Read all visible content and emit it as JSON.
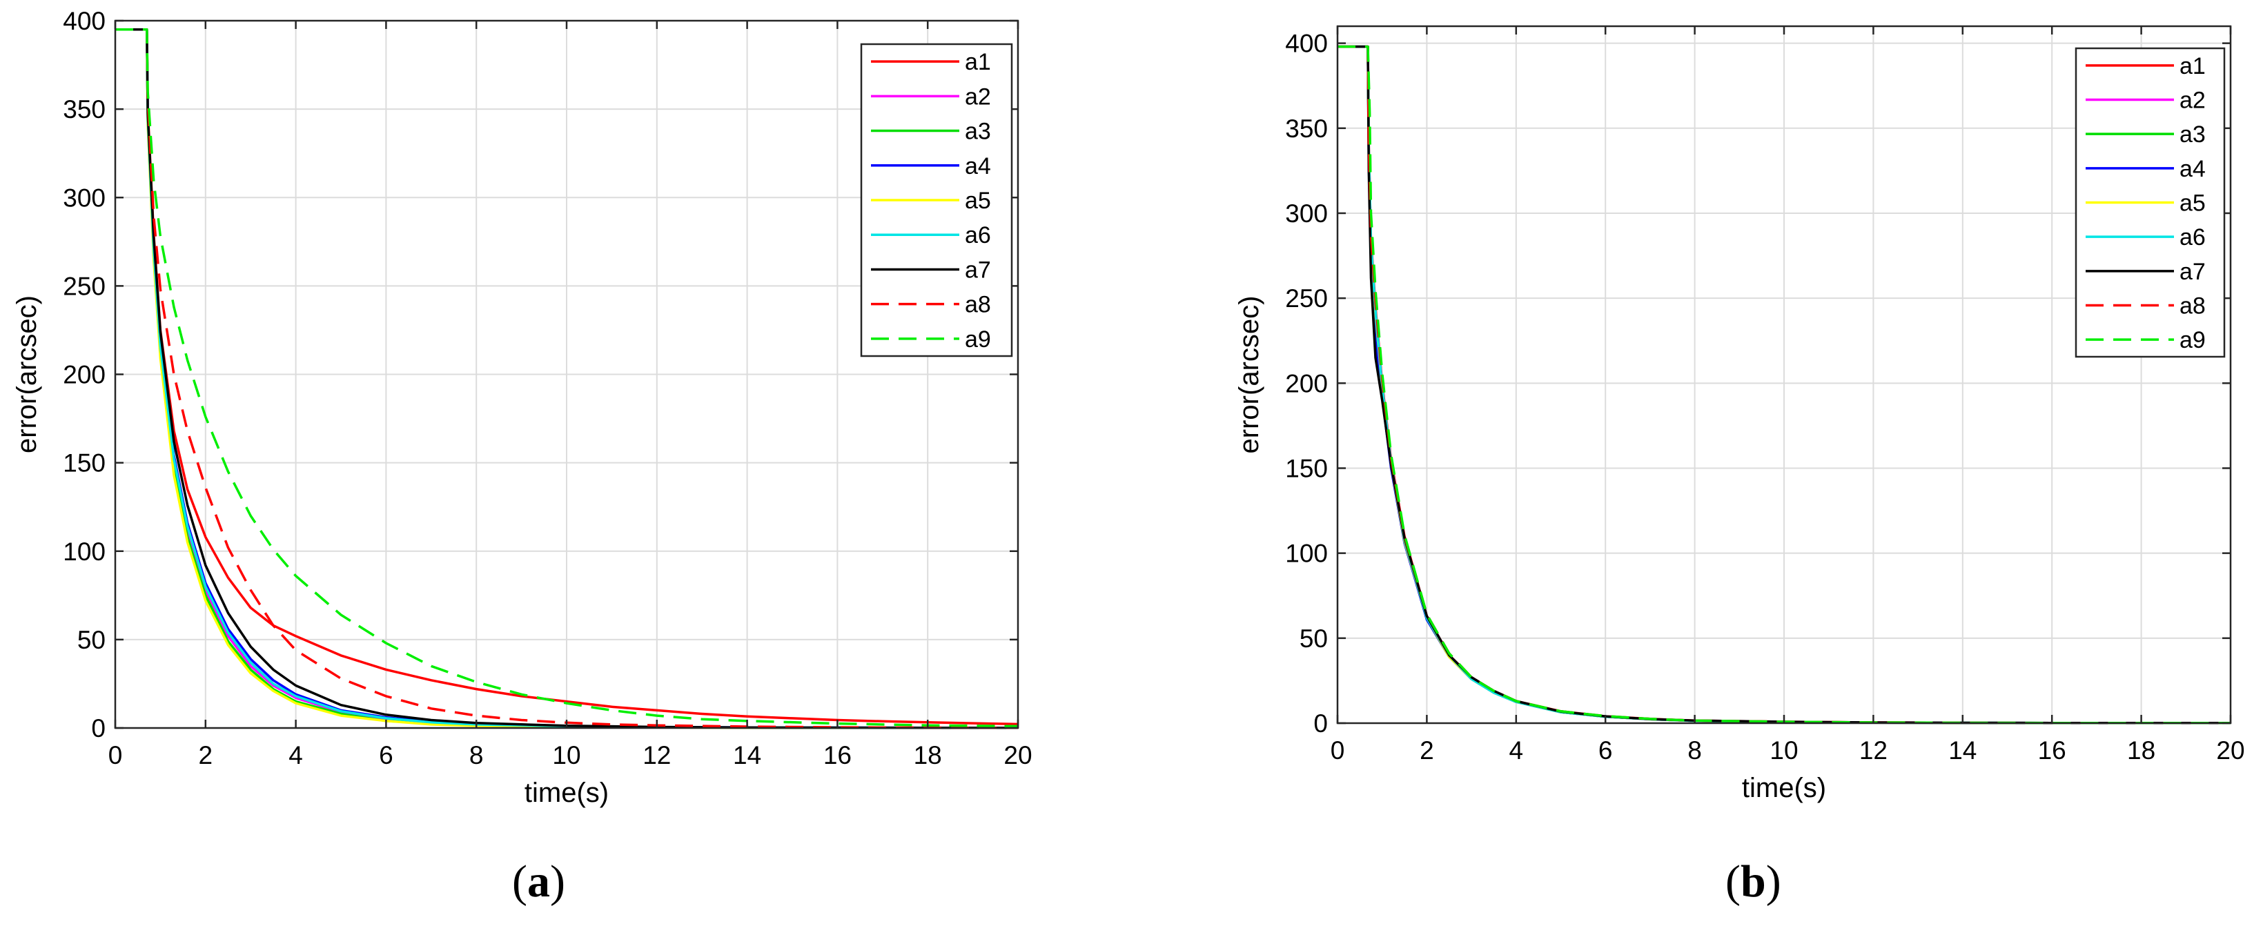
{
  "panel_labels": [
    {
      "open": "(",
      "letter": "a",
      "close": ")"
    },
    {
      "open": "(",
      "letter": "b",
      "close": ")"
    }
  ],
  "chart_data": [
    {
      "type": "line",
      "title": "",
      "xlabel": "time(s)",
      "ylabel": "error(arcsec)",
      "xlim": [
        0,
        20
      ],
      "ylim": [
        0,
        400
      ],
      "xticks": [
        0,
        2,
        4,
        6,
        8,
        10,
        12,
        14,
        16,
        18,
        20
      ],
      "yticks": [
        0,
        50,
        100,
        150,
        200,
        250,
        300,
        350,
        400
      ],
      "grid": true,
      "legend_position": "top-right",
      "series": [
        {
          "name": "a1",
          "color": "#ff0000",
          "dash": "solid",
          "x": [
            0,
            0.7,
            0.72,
            0.85,
            1.0,
            1.3,
            1.6,
            2.0,
            2.5,
            3.0,
            3.5,
            4.0,
            5.0,
            6.0,
            7.0,
            8.0,
            9.0,
            10.0,
            11.0,
            12.0,
            13.0,
            14.0,
            15.0,
            16.0,
            17.0,
            18.0,
            19.0,
            20.0
          ],
          "y": [
            395,
            395,
            350,
            280,
            225,
            168,
            135,
            108,
            85,
            68,
            58,
            52,
            41,
            33,
            27,
            22,
            18,
            15,
            12,
            10,
            8,
            6.5,
            5.5,
            4.5,
            3.8,
            3.2,
            2.7,
            2.2
          ]
        },
        {
          "name": "a2",
          "color": "#ff00ff",
          "dash": "solid",
          "x": [
            0,
            0.7,
            0.72,
            0.85,
            1.0,
            1.3,
            1.6,
            2.0,
            2.5,
            3.0,
            3.5,
            4.0,
            5.0,
            6.0,
            7.0,
            8.0,
            10.0,
            12.0,
            14.0,
            16.0,
            18.0,
            20.0
          ],
          "y": [
            395,
            395,
            345,
            270,
            215,
            150,
            112,
            78,
            52,
            35,
            24,
            17,
            9,
            5,
            3,
            2,
            1,
            0.5,
            0.3,
            0.2,
            0.1,
            0.1
          ]
        },
        {
          "name": "a3",
          "color": "#00dd00",
          "dash": "solid",
          "x": [
            0,
            0.7,
            0.72,
            0.85,
            1.0,
            1.3,
            1.6,
            2.0,
            2.5,
            3.0,
            3.5,
            4.0,
            5.0,
            6.0,
            7.0,
            8.0,
            10.0,
            12.0,
            14.0,
            16.0,
            18.0,
            20.0
          ],
          "y": [
            395,
            395,
            343,
            268,
            212,
            146,
            108,
            75,
            49,
            33,
            22,
            15,
            8,
            4,
            2.5,
            1.5,
            0.8,
            0.4,
            0.2,
            0.1,
            0.1,
            0.1
          ]
        },
        {
          "name": "a4",
          "color": "#0000ff",
          "dash": "solid",
          "x": [
            0,
            0.7,
            0.72,
            0.85,
            1.0,
            1.3,
            1.6,
            2.0,
            2.5,
            3.0,
            3.5,
            4.0,
            5.0,
            6.0,
            7.0,
            8.0,
            10.0,
            12.0,
            14.0,
            16.0,
            18.0,
            20.0
          ],
          "y": [
            395,
            395,
            347,
            273,
            218,
            154,
            116,
            82,
            56,
            39,
            27,
            19,
            10,
            6,
            3.5,
            2,
            1,
            0.5,
            0.3,
            0.2,
            0.1,
            0.1
          ]
        },
        {
          "name": "a5",
          "color": "#ffff00",
          "dash": "solid",
          "x": [
            0,
            0.7,
            0.72,
            0.85,
            1.0,
            1.3,
            1.6,
            2.0,
            2.5,
            3.0,
            3.5,
            4.0,
            5.0,
            6.0,
            7.0,
            8.0,
            10.0,
            12.0,
            14.0,
            16.0,
            18.0,
            20.0
          ],
          "y": [
            395,
            395,
            341,
            265,
            209,
            143,
            105,
            72,
            47,
            31,
            21,
            14,
            7,
            4,
            2,
            1.2,
            0.6,
            0.3,
            0.2,
            0.1,
            0.1,
            0.1
          ]
        },
        {
          "name": "a6",
          "color": "#00e5e5",
          "dash": "solid",
          "x": [
            0,
            0.7,
            0.72,
            0.85,
            1.0,
            1.3,
            1.6,
            2.0,
            2.5,
            3.0,
            3.5,
            4.0,
            5.0,
            6.0,
            7.0,
            8.0,
            10.0,
            12.0,
            14.0,
            16.0,
            18.0,
            20.0
          ],
          "y": [
            395,
            395,
            345,
            271,
            216,
            152,
            114,
            80,
            54,
            37,
            25,
            18,
            9.5,
            5.5,
            3.2,
            2,
            1,
            0.5,
            0.3,
            0.2,
            0.1,
            0.1
          ]
        },
        {
          "name": "a7",
          "color": "#000000",
          "dash": "solid",
          "x": [
            0,
            0.7,
            0.72,
            0.85,
            1.0,
            1.3,
            1.6,
            2.0,
            2.5,
            3.0,
            3.5,
            4.0,
            5.0,
            6.0,
            7.0,
            8.0,
            10.0,
            12.0,
            14.0,
            16.0,
            18.0,
            20.0
          ],
          "y": [
            395,
            395,
            348,
            278,
            224,
            162,
            126,
            92,
            65,
            46,
            33,
            24,
            13,
            7.5,
            4.5,
            2.8,
            1.3,
            0.6,
            0.3,
            0.2,
            0.1,
            0.1
          ]
        },
        {
          "name": "a8",
          "color": "#ff0000",
          "dash": "dashed",
          "x": [
            0,
            0.7,
            0.72,
            0.85,
            1.0,
            1.3,
            1.6,
            2.0,
            2.5,
            3.0,
            3.5,
            4.0,
            5.0,
            6.0,
            7.0,
            8.0,
            9.0,
            10.0,
            11.0,
            12.0,
            14.0,
            16.0,
            18.0,
            20.0
          ],
          "y": [
            395,
            395,
            355,
            290,
            248,
            200,
            168,
            136,
            102,
            78,
            58,
            44,
            28,
            18,
            11,
            7,
            4.5,
            3,
            2,
            1.5,
            0.8,
            0.4,
            0.2,
            0.1
          ]
        },
        {
          "name": "a9",
          "color": "#00ee00",
          "dash": "dashed",
          "x": [
            0,
            0.7,
            0.72,
            0.85,
            1.0,
            1.3,
            1.6,
            2.0,
            2.5,
            3.0,
            3.5,
            4.0,
            5.0,
            6.0,
            7.0,
            8.0,
            9.0,
            10.0,
            11.0,
            12.0,
            13.0,
            14.0,
            16.0,
            18.0,
            20.0
          ],
          "y": [
            395,
            395,
            360,
            310,
            278,
            238,
            208,
            176,
            145,
            120,
            101,
            86,
            64,
            48,
            35,
            26,
            19,
            14,
            10,
            7,
            5,
            4,
            2.5,
            1.5,
            1
          ]
        }
      ]
    },
    {
      "type": "line",
      "title": "",
      "xlabel": "time(s)",
      "ylabel": "error(arcsec)",
      "xlim": [
        0,
        20
      ],
      "ylim": [
        0,
        410
      ],
      "xticks": [
        0,
        2,
        4,
        6,
        8,
        10,
        12,
        14,
        16,
        18,
        20
      ],
      "yticks": [
        0,
        50,
        100,
        150,
        200,
        250,
        300,
        350,
        400
      ],
      "grid": true,
      "legend_position": "top-right",
      "series": [
        {
          "name": "a1",
          "color": "#ff0000",
          "dash": "solid",
          "x": [
            0,
            0.68,
            0.7,
            0.75,
            0.85,
            1.0,
            1.2,
            1.5,
            2.0,
            2.5,
            3.0,
            3.5,
            4.0,
            5.0,
            6.0,
            7.0,
            8.0,
            10.0,
            12.0,
            14.0,
            16.0,
            18.0,
            20.0
          ],
          "y": [
            398,
            398,
            340,
            285,
            245,
            200,
            155,
            110,
            63,
            40,
            27,
            19,
            13,
            7,
            4,
            2.5,
            1.5,
            0.8,
            0.4,
            0.2,
            0.1,
            0.1,
            0.1
          ]
        },
        {
          "name": "a2",
          "color": "#ff00ff",
          "dash": "solid",
          "x": [
            0,
            0.68,
            0.7,
            0.75,
            0.85,
            1.0,
            1.2,
            1.5,
            2.0,
            2.5,
            3.0,
            3.5,
            4.0,
            5.0,
            6.0,
            7.0,
            8.0,
            10.0,
            12.0,
            14.0,
            16.0,
            18.0,
            20.0
          ],
          "y": [
            398,
            398,
            338,
            282,
            242,
            198,
            153,
            108,
            62,
            39,
            26,
            18,
            12.5,
            6.5,
            3.8,
            2.3,
            1.4,
            0.7,
            0.3,
            0.2,
            0.1,
            0.1,
            0.1
          ]
        },
        {
          "name": "a3",
          "color": "#00dd00",
          "dash": "solid",
          "x": [
            0,
            0.68,
            0.7,
            0.75,
            0.85,
            1.0,
            1.2,
            1.5,
            2.0,
            2.5,
            3.0,
            3.5,
            4.0,
            5.0,
            6.0,
            7.0,
            8.0,
            10.0,
            12.0,
            14.0,
            16.0,
            18.0,
            20.0
          ],
          "y": [
            398,
            398,
            336,
            280,
            240,
            197,
            152,
            107,
            61,
            39,
            26,
            18,
            12.5,
            6.5,
            3.8,
            2.3,
            1.4,
            0.7,
            0.3,
            0.2,
            0.1,
            0.1,
            0.1
          ]
        },
        {
          "name": "a4",
          "color": "#0000ff",
          "dash": "solid",
          "x": [
            0,
            0.68,
            0.7,
            0.75,
            0.85,
            1.0,
            1.2,
            1.5,
            2.0,
            2.5,
            3.0,
            3.5,
            4.0,
            5.0,
            6.0,
            7.0,
            8.0,
            10.0,
            12.0,
            14.0,
            16.0,
            18.0,
            20.0
          ],
          "y": [
            398,
            398,
            330,
            270,
            225,
            192,
            150,
            106,
            61,
            39,
            26,
            18,
            12.5,
            6.5,
            3.8,
            2.3,
            1.4,
            0.7,
            0.3,
            0.2,
            0.1,
            0.1,
            0.1
          ]
        },
        {
          "name": "a5",
          "color": "#ffff00",
          "dash": "solid",
          "x": [
            0,
            0.68,
            0.7,
            0.75,
            0.85,
            1.0,
            1.2,
            1.5,
            2.0,
            2.5,
            3.0,
            3.5,
            4.0,
            5.0,
            6.0,
            7.0,
            8.0,
            10.0,
            12.0,
            14.0,
            16.0,
            18.0,
            20.0
          ],
          "y": [
            398,
            398,
            337,
            281,
            241,
            197,
            152,
            107,
            62,
            39,
            26,
            18,
            12.5,
            6.5,
            3.8,
            2.3,
            1.4,
            0.7,
            0.3,
            0.2,
            0.1,
            0.1,
            0.1
          ]
        },
        {
          "name": "a6",
          "color": "#00e5e5",
          "dash": "solid",
          "x": [
            0,
            0.68,
            0.7,
            0.75,
            0.85,
            1.0,
            1.2,
            1.5,
            2.0,
            2.5,
            3.0,
            3.5,
            4.0,
            5.0,
            6.0,
            7.0,
            8.0,
            10.0,
            12.0,
            14.0,
            16.0,
            18.0,
            20.0
          ],
          "y": [
            398,
            398,
            338,
            283,
            243,
            198,
            153,
            108,
            62,
            40,
            26,
            18,
            12.5,
            6.5,
            3.8,
            2.3,
            1.4,
            0.7,
            0.3,
            0.2,
            0.1,
            0.1,
            0.1
          ]
        },
        {
          "name": "a7",
          "color": "#000000",
          "dash": "solid",
          "x": [
            0,
            0.68,
            0.7,
            0.75,
            0.85,
            1.0,
            1.2,
            1.5,
            2.0,
            2.5,
            3.0,
            3.5,
            4.0,
            5.0,
            6.0,
            7.0,
            8.0,
            10.0,
            12.0,
            14.0,
            16.0,
            18.0,
            20.0
          ],
          "y": [
            398,
            398,
            325,
            262,
            215,
            190,
            152,
            109,
            63,
            40,
            27,
            19,
            13,
            6.8,
            4,
            2.4,
            1.5,
            0.8,
            0.4,
            0.2,
            0.1,
            0.1,
            0.1
          ]
        },
        {
          "name": "a8",
          "color": "#ff0000",
          "dash": "dashed",
          "x": [
            0,
            0.68,
            0.7,
            0.75,
            0.85,
            1.0,
            1.2,
            1.5,
            2.0,
            2.5,
            3.0,
            3.5,
            4.0,
            5.0,
            6.0,
            7.0,
            8.0,
            10.0,
            12.0,
            14.0,
            16.0,
            18.0,
            20.0
          ],
          "y": [
            398,
            398,
            342,
            288,
            248,
            202,
            156,
            110,
            64,
            41,
            27,
            19,
            13,
            7,
            4.2,
            2.5,
            1.5,
            0.8,
            0.4,
            0.2,
            0.1,
            0.1,
            0.1
          ]
        },
        {
          "name": "a9",
          "color": "#00ee00",
          "dash": "dashed",
          "x": [
            0,
            0.68,
            0.72,
            0.75,
            0.85,
            1.0,
            1.2,
            1.5,
            2.0,
            2.5,
            3.0,
            3.5,
            4.0,
            5.0,
            6.0,
            7.0,
            8.0,
            10.0,
            12.0,
            14.0,
            16.0,
            18.0,
            20.0
          ],
          "y": [
            398,
            398,
            360,
            300,
            255,
            206,
            158,
            111,
            64,
            41,
            27,
            19,
            13,
            7,
            4.2,
            2.5,
            1.5,
            0.8,
            0.4,
            0.2,
            0.1,
            0.1,
            0.1
          ]
        }
      ]
    }
  ]
}
